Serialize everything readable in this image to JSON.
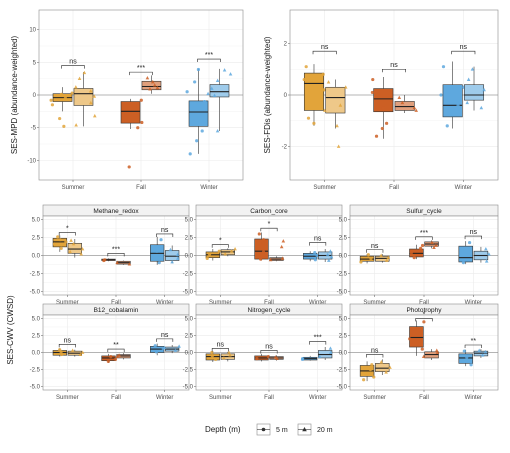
{
  "colors": {
    "Summer": "#E2A43A",
    "Fall": "#CC5F24",
    "Winter": "#5EA8DE",
    "grid": "#ebebeb",
    "panel_border": "#8c8c8c",
    "strip_fill": "#f2f2f2",
    "zero_line": "#9e9e9e"
  },
  "legend": {
    "title": "Depth (m)",
    "items": [
      {
        "label": "5 m",
        "shape": "circle"
      },
      {
        "label": "20 m",
        "shape": "triangle"
      }
    ]
  },
  "shared_ylabel": "SES-CWV (CWSD)",
  "chart_data": [
    {
      "type": "box",
      "title": "",
      "ylabel": "SES-MPD (abundance-weighted)",
      "categories": [
        "Summer",
        "Fall",
        "Winter"
      ],
      "ylim": [
        -13,
        13
      ],
      "yticks": [
        -10,
        -5,
        0,
        5,
        10
      ],
      "yticklabels": [
        "-10",
        "-5",
        "0",
        "5",
        "10"
      ],
      "series": [
        {
          "name": "5 m",
          "boxes": [
            {
              "q1": -1.0,
              "med": -0.4,
              "q3": 0.2,
              "lo": -2.5,
              "hi": 1.2,
              "points": [
                -0.8,
                0.3,
                -1.5,
                -4.8,
                -3.6,
                0.1,
                -0.5
              ]
            },
            {
              "q1": -4.3,
              "med": -2.5,
              "q3": -1.0,
              "lo": -5.2,
              "hi": -0.6,
              "points": [
                -0.8,
                -1.8,
                -3.0,
                -4.2,
                -5.0,
                -11.0
              ]
            },
            {
              "q1": -4.8,
              "med": -2.6,
              "q3": -0.9,
              "lo": -9.0,
              "hi": 4.0,
              "points": [
                -1.0,
                -3.0,
                -5.5,
                -7.0,
                -9.0,
                2.0,
                3.9,
                0.5
              ]
            }
          ]
        },
        {
          "name": "20 m",
          "boxes": [
            {
              "q1": -1.6,
              "med": 0.2,
              "q3": 1.0,
              "lo": -4.8,
              "hi": 3.5,
              "points": [
                1.2,
                2.5,
                3.4,
                -0.2,
                -1.2,
                -4.6,
                -3.2,
                0.6
              ]
            },
            {
              "q1": 0.8,
              "med": 1.3,
              "q3": 2.1,
              "lo": 0.2,
              "hi": 3.0,
              "points": [
                0.9,
                1.5,
                2.6,
                1.1,
                2.0
              ]
            },
            {
              "q1": -0.3,
              "med": 0.5,
              "q3": 1.6,
              "lo": -5.5,
              "hi": 4.0,
              "points": [
                0.2,
                1.0,
                2.2,
                3.2,
                3.8,
                -0.1,
                -5.5
              ]
            }
          ]
        }
      ],
      "annotations": [
        "ns",
        "***",
        "***"
      ],
      "annotation_y": [
        4.5,
        3.5,
        5.5
      ]
    },
    {
      "type": "box",
      "title": "",
      "ylabel": "SES-FDis (abundance-weighted)",
      "categories": [
        "Summer",
        "Fall",
        "Winter"
      ],
      "ylim": [
        -3.3,
        3.3
      ],
      "yticks": [
        -2,
        0,
        2
      ],
      "yticklabels": [
        "-2",
        "0",
        "2"
      ],
      "series": [
        {
          "name": "5 m",
          "boxes": [
            {
              "q1": -0.6,
              "med": 0.45,
              "q3": 0.85,
              "lo": -1.2,
              "hi": 1.2,
              "points": [
                -0.9,
                0.2,
                0.6,
                1.1,
                -1.1,
                0.8
              ]
            },
            {
              "q1": -0.65,
              "med": -0.15,
              "q3": 0.25,
              "lo": -1.7,
              "hi": 0.7,
              "points": [
                -1.6,
                -1.1,
                0.6,
                0.1,
                -0.5,
                -1.3
              ]
            },
            {
              "q1": -0.85,
              "med": -0.4,
              "q3": 0.4,
              "lo": -1.3,
              "hi": 1.3,
              "points": [
                -1.2,
                -0.7,
                0.3,
                1.1,
                0.0,
                -0.4
              ]
            }
          ]
        },
        {
          "name": "20 m",
          "boxes": [
            {
              "q1": -0.7,
              "med": -0.1,
              "q3": 0.3,
              "lo": -1.3,
              "hi": 0.6,
              "points": [
                -1.2,
                -0.4,
                0.3,
                0.5,
                -2.0,
                -0.6
              ]
            },
            {
              "q1": -0.6,
              "med": -0.45,
              "q3": -0.25,
              "lo": -0.7,
              "hi": 0.0,
              "points": [
                -0.5,
                -0.3,
                -0.6,
                -0.1
              ]
            },
            {
              "q1": -0.2,
              "med": 0.0,
              "q3": 0.4,
              "lo": -0.6,
              "hi": 1.1,
              "points": [
                -0.3,
                0.2,
                0.6,
                1.0,
                -0.5
              ]
            }
          ]
        }
      ],
      "annotations": [
        "ns",
        "ns",
        "ns"
      ],
      "annotation_y": [
        1.7,
        1.0,
        1.7
      ]
    },
    {
      "type": "box",
      "title": "Methane_redox",
      "categories": [
        "Summer",
        "Fall",
        "Winter"
      ],
      "ylim": [
        -5.5,
        5.5
      ],
      "yticks": [
        -5,
        -2.5,
        0,
        2.5,
        5
      ],
      "yticklabels": [
        "-5.0",
        "-2.5",
        "0.0",
        "2.5",
        "5.0"
      ],
      "series": [
        {
          "name": "5 m",
          "boxes": [
            {
              "q1": 1.2,
              "med": 1.9,
              "q3": 2.4,
              "lo": 0.5,
              "hi": 2.8,
              "points": [
                1.0,
                1.6,
                2.2,
                2.6,
                1.9
              ]
            },
            {
              "q1": -0.7,
              "med": -0.6,
              "q3": -0.5,
              "lo": -0.8,
              "hi": -0.4,
              "points": [
                -0.6,
                -0.7
              ]
            },
            {
              "q1": -0.8,
              "med": 0.3,
              "q3": 1.5,
              "lo": -1.3,
              "hi": 2.6,
              "points": [
                -1.0,
                0.0,
                1.2,
                2.2,
                0.6
              ]
            }
          ]
        },
        {
          "name": "20 m",
          "boxes": [
            {
              "q1": 0.3,
              "med": 0.9,
              "q3": 1.7,
              "lo": -0.3,
              "hi": 2.3,
              "points": [
                0.2,
                0.9,
                1.6,
                2.1,
                0.5
              ]
            },
            {
              "q1": -1.2,
              "med": -1.0,
              "q3": -0.8,
              "lo": -1.3,
              "hi": -0.7,
              "points": [
                -1.0,
                -1.2
              ]
            },
            {
              "q1": -0.7,
              "med": -0.1,
              "q3": 0.7,
              "lo": -1.1,
              "hi": 1.4,
              "points": [
                -0.9,
                0.1,
                0.8,
                -0.4
              ]
            }
          ]
        }
      ],
      "annotations": [
        "*",
        "***",
        "ns"
      ],
      "annotation_y": [
        3.2,
        0.3,
        3.0
      ]
    },
    {
      "type": "box",
      "title": "Carbon_core",
      "categories": [
        "Summer",
        "Fall",
        "Winter"
      ],
      "ylim": [
        -5.5,
        5.5
      ],
      "yticks": [
        -5,
        -2.5,
        0,
        2.5,
        5
      ],
      "yticklabels": [
        "-5.0",
        "-2.5",
        "0.0",
        "2.5",
        "5.0"
      ],
      "series": [
        {
          "name": "5 m",
          "boxes": [
            {
              "q1": -0.3,
              "med": 0.1,
              "q3": 0.5,
              "lo": -0.7,
              "hi": 0.9,
              "points": [
                -0.4,
                0.2,
                0.6
              ]
            },
            {
              "q1": -0.5,
              "med": 0.6,
              "q3": 2.3,
              "lo": -0.7,
              "hi": 3.2,
              "points": [
                -0.5,
                0.5,
                1.8,
                3.0,
                2.2
              ]
            },
            {
              "q1": -0.5,
              "med": -0.1,
              "q3": 0.3,
              "lo": -0.8,
              "hi": 0.6,
              "points": [
                -0.6,
                0.0,
                0.4
              ]
            }
          ]
        },
        {
          "name": "20 m",
          "boxes": [
            {
              "q1": 0.1,
              "med": 0.5,
              "q3": 0.8,
              "lo": -0.1,
              "hi": 1.0,
              "points": [
                0.2,
                0.6,
                0.9
              ]
            },
            {
              "q1": -0.7,
              "med": -0.5,
              "q3": -0.3,
              "lo": -0.8,
              "hi": -0.1,
              "points": [
                -0.6,
                -0.4,
                2.0,
                1.2
              ]
            },
            {
              "q1": -0.5,
              "med": 0.0,
              "q3": 0.5,
              "lo": -0.9,
              "hi": 0.9,
              "points": [
                -0.7,
                0.1,
                0.6,
                -0.2
              ]
            }
          ]
        }
      ],
      "annotations": [
        "*",
        "*",
        "ns"
      ],
      "annotation_y": [
        1.5,
        3.8,
        1.8
      ]
    },
    {
      "type": "box",
      "title": "Sulfur_cycle",
      "categories": [
        "Summer",
        "Fall",
        "Winter"
      ],
      "ylim": [
        -5.5,
        5.5
      ],
      "yticks": [
        -5,
        -2.5,
        0,
        2.5,
        5
      ],
      "yticklabels": [
        "-5.0",
        "-2.5",
        "0.0",
        "2.5",
        "5.0"
      ],
      "series": [
        {
          "name": "5 m",
          "boxes": [
            {
              "q1": -0.8,
              "med": -0.5,
              "q3": -0.1,
              "lo": -1.1,
              "hi": 0.2,
              "points": [
                -0.9,
                -0.4,
                0.1
              ]
            },
            {
              "q1": -0.2,
              "med": 0.3,
              "q3": 0.9,
              "lo": -0.5,
              "hi": 1.5,
              "points": [
                -0.3,
                0.4,
                1.0,
                1.4
              ]
            },
            {
              "q1": -0.9,
              "med": -0.3,
              "q3": 1.3,
              "lo": -1.2,
              "hi": 2.0,
              "points": [
                -1.0,
                0.1,
                1.0,
                1.8
              ]
            }
          ]
        },
        {
          "name": "20 m",
          "boxes": [
            {
              "q1": -0.8,
              "med": -0.4,
              "q3": -0.1,
              "lo": -1.0,
              "hi": 0.2,
              "points": [
                -0.7,
                -0.3,
                0.0
              ]
            },
            {
              "q1": 1.3,
              "med": 1.6,
              "q3": 1.9,
              "lo": 1.0,
              "hi": 2.1,
              "points": [
                1.4,
                1.8,
                1.1
              ]
            },
            {
              "q1": -0.6,
              "med": 0.0,
              "q3": 0.6,
              "lo": -1.0,
              "hi": 1.2,
              "points": [
                -0.8,
                0.2,
                0.9
              ]
            }
          ]
        }
      ],
      "annotations": [
        "ns",
        "***",
        "ns"
      ],
      "annotation_y": [
        0.8,
        2.6,
        2.7
      ]
    },
    {
      "type": "box",
      "title": "B12_cobalamin",
      "categories": [
        "Summer",
        "Fall",
        "Winter"
      ],
      "ylim": [
        -5.5,
        5.5
      ],
      "yticks": [
        -5,
        -2.5,
        0,
        2.5,
        5
      ],
      "yticklabels": [
        "-5.0",
        "-2.5",
        "0.0",
        "2.5",
        "5.0"
      ],
      "series": [
        {
          "name": "5 m",
          "boxes": [
            {
              "q1": -0.4,
              "med": 0.0,
              "q3": 0.3,
              "lo": -0.6,
              "hi": 0.6,
              "points": [
                -0.3,
                0.1,
                0.4
              ]
            },
            {
              "q1": -1.2,
              "med": -0.8,
              "q3": -0.5,
              "lo": -1.5,
              "hi": -0.2,
              "points": [
                -1.0,
                -0.6,
                -1.3
              ]
            },
            {
              "q1": 0.0,
              "med": 0.5,
              "q3": 0.9,
              "lo": -0.4,
              "hi": 1.3,
              "points": [
                0.1,
                0.6,
                1.0
              ]
            }
          ]
        },
        {
          "name": "20 m",
          "boxes": [
            {
              "q1": -0.4,
              "med": -0.1,
              "q3": 0.2,
              "lo": -0.6,
              "hi": 0.4,
              "points": [
                -0.3,
                0.0,
                0.3
              ]
            },
            {
              "q1": -0.8,
              "med": -0.5,
              "q3": -0.3,
              "lo": -1.0,
              "hi": -0.1,
              "points": [
                -0.6,
                -0.4
              ]
            },
            {
              "q1": 0.2,
              "med": 0.5,
              "q3": 0.8,
              "lo": -0.1,
              "hi": 1.1,
              "points": [
                0.3,
                0.7,
                0.9
              ]
            }
          ]
        }
      ],
      "annotations": [
        "ns",
        "**",
        "ns"
      ],
      "annotation_y": [
        1.2,
        0.5,
        2.0
      ]
    },
    {
      "type": "box",
      "title": "Nitrogen_cycle",
      "categories": [
        "Summer",
        "Fall",
        "Winter"
      ],
      "ylim": [
        -5.5,
        5.5
      ],
      "yticks": [
        -5,
        -2.5,
        0,
        2.5,
        5
      ],
      "yticklabels": [
        "-5.0",
        "-2.5",
        "0.0",
        "2.5",
        "5.0"
      ],
      "series": [
        {
          "name": "5 m",
          "boxes": [
            {
              "q1": -1.1,
              "med": -0.6,
              "q3": -0.2,
              "lo": -1.4,
              "hi": 0.2,
              "points": [
                -1.0,
                -0.5,
                0.0
              ]
            },
            {
              "q1": -1.1,
              "med": -0.8,
              "q3": -0.5,
              "lo": -1.3,
              "hi": -0.2,
              "points": [
                -0.9,
                -0.6
              ]
            },
            {
              "q1": -1.1,
              "med": -0.9,
              "q3": -0.7,
              "lo": -1.2,
              "hi": -0.5,
              "points": [
                -0.9,
                -1.0
              ]
            }
          ]
        },
        {
          "name": "20 m",
          "boxes": [
            {
              "q1": -1.0,
              "med": -0.6,
              "q3": -0.2,
              "lo": -1.3,
              "hi": 0.1,
              "points": [
                -0.8,
                -0.4,
                0.0
              ]
            },
            {
              "q1": -1.0,
              "med": -0.8,
              "q3": -0.6,
              "lo": -1.2,
              "hi": -0.4,
              "points": [
                -0.9,
                -0.7
              ]
            },
            {
              "q1": -0.8,
              "med": -0.3,
              "q3": 0.3,
              "lo": -1.1,
              "hi": 0.8,
              "points": [
                -0.6,
                0.0,
                0.6
              ]
            }
          ]
        }
      ],
      "annotations": [
        "ns",
        "ns",
        "***"
      ],
      "annotation_y": [
        0.6,
        0.3,
        1.6
      ]
    },
    {
      "type": "box",
      "title": "Phototrophy",
      "categories": [
        "Summer",
        "Fall",
        "Winter"
      ],
      "ylim": [
        -5.5,
        5.5
      ],
      "yticks": [
        -5,
        -2.5,
        0,
        2.5,
        5
      ],
      "yticklabels": [
        "-5.0",
        "-2.5",
        "0.0",
        "2.5",
        "5.0"
      ],
      "series": [
        {
          "name": "5 m",
          "boxes": [
            {
              "q1": -3.5,
              "med": -2.7,
              "q3": -1.9,
              "lo": -4.2,
              "hi": -1.3,
              "points": [
                -3.6,
                -2.5,
                -1.8,
                -4.0
              ]
            },
            {
              "q1": 0.8,
              "med": 2.2,
              "q3": 3.8,
              "lo": -0.5,
              "hi": 4.7,
              "points": [
                0.5,
                2.0,
                3.5,
                4.5,
                1.2
              ]
            },
            {
              "q1": -1.6,
              "med": -0.8,
              "q3": -0.2,
              "lo": -2.0,
              "hi": 0.4,
              "points": [
                -1.8,
                -0.7,
                0.2
              ]
            }
          ]
        },
        {
          "name": "20 m",
          "boxes": [
            {
              "q1": -2.8,
              "med": -2.3,
              "q3": -1.6,
              "lo": -3.3,
              "hi": -1.0,
              "points": [
                -2.9,
                -2.2,
                -1.4
              ]
            },
            {
              "q1": -0.8,
              "med": -0.3,
              "q3": 0.1,
              "lo": -1.1,
              "hi": 0.5,
              "points": [
                -0.6,
                0.0,
                0.3
              ]
            },
            {
              "q1": -0.5,
              "med": -0.1,
              "q3": 0.2,
              "lo": -0.8,
              "hi": 0.5,
              "points": [
                -0.4,
                0.1,
                0.3
              ]
            }
          ]
        }
      ],
      "annotations": [
        "ns",
        "*",
        "**"
      ],
      "annotation_y": [
        -0.3,
        5.0,
        1.1
      ]
    }
  ]
}
